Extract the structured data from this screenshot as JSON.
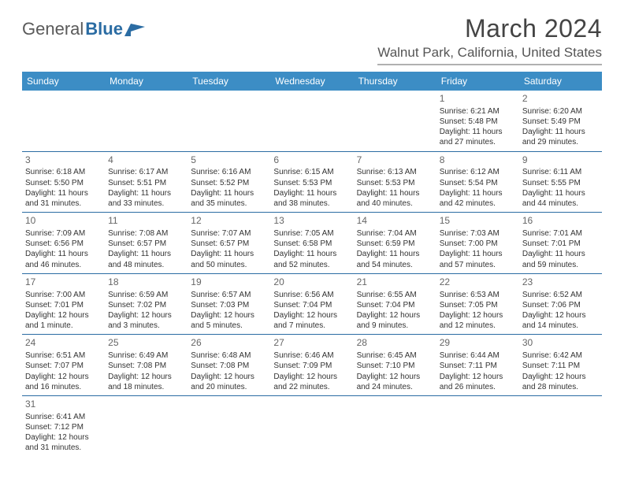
{
  "brand": {
    "part1": "General",
    "part2": "Blue"
  },
  "title": "March 2024",
  "location": "Walnut Park, California, United States",
  "colors": {
    "header_bg": "#3c8dc5",
    "header_text": "#ffffff",
    "cell_border": "#2b6ca3",
    "brand_gray": "#5a5a5a",
    "brand_blue": "#2b6ca3",
    "text": "#333333",
    "daynum": "#666666"
  },
  "weekdays": [
    "Sunday",
    "Monday",
    "Tuesday",
    "Wednesday",
    "Thursday",
    "Friday",
    "Saturday"
  ],
  "weeks": [
    [
      null,
      null,
      null,
      null,
      null,
      {
        "n": "1",
        "sunrise": "6:21 AM",
        "sunset": "5:48 PM",
        "daylight": "11 hours and 27 minutes."
      },
      {
        "n": "2",
        "sunrise": "6:20 AM",
        "sunset": "5:49 PM",
        "daylight": "11 hours and 29 minutes."
      }
    ],
    [
      {
        "n": "3",
        "sunrise": "6:18 AM",
        "sunset": "5:50 PM",
        "daylight": "11 hours and 31 minutes."
      },
      {
        "n": "4",
        "sunrise": "6:17 AM",
        "sunset": "5:51 PM",
        "daylight": "11 hours and 33 minutes."
      },
      {
        "n": "5",
        "sunrise": "6:16 AM",
        "sunset": "5:52 PM",
        "daylight": "11 hours and 35 minutes."
      },
      {
        "n": "6",
        "sunrise": "6:15 AM",
        "sunset": "5:53 PM",
        "daylight": "11 hours and 38 minutes."
      },
      {
        "n": "7",
        "sunrise": "6:13 AM",
        "sunset": "5:53 PM",
        "daylight": "11 hours and 40 minutes."
      },
      {
        "n": "8",
        "sunrise": "6:12 AM",
        "sunset": "5:54 PM",
        "daylight": "11 hours and 42 minutes."
      },
      {
        "n": "9",
        "sunrise": "6:11 AM",
        "sunset": "5:55 PM",
        "daylight": "11 hours and 44 minutes."
      }
    ],
    [
      {
        "n": "10",
        "sunrise": "7:09 AM",
        "sunset": "6:56 PM",
        "daylight": "11 hours and 46 minutes."
      },
      {
        "n": "11",
        "sunrise": "7:08 AM",
        "sunset": "6:57 PM",
        "daylight": "11 hours and 48 minutes."
      },
      {
        "n": "12",
        "sunrise": "7:07 AM",
        "sunset": "6:57 PM",
        "daylight": "11 hours and 50 minutes."
      },
      {
        "n": "13",
        "sunrise": "7:05 AM",
        "sunset": "6:58 PM",
        "daylight": "11 hours and 52 minutes."
      },
      {
        "n": "14",
        "sunrise": "7:04 AM",
        "sunset": "6:59 PM",
        "daylight": "11 hours and 54 minutes."
      },
      {
        "n": "15",
        "sunrise": "7:03 AM",
        "sunset": "7:00 PM",
        "daylight": "11 hours and 57 minutes."
      },
      {
        "n": "16",
        "sunrise": "7:01 AM",
        "sunset": "7:01 PM",
        "daylight": "11 hours and 59 minutes."
      }
    ],
    [
      {
        "n": "17",
        "sunrise": "7:00 AM",
        "sunset": "7:01 PM",
        "daylight": "12 hours and 1 minute."
      },
      {
        "n": "18",
        "sunrise": "6:59 AM",
        "sunset": "7:02 PM",
        "daylight": "12 hours and 3 minutes."
      },
      {
        "n": "19",
        "sunrise": "6:57 AM",
        "sunset": "7:03 PM",
        "daylight": "12 hours and 5 minutes."
      },
      {
        "n": "20",
        "sunrise": "6:56 AM",
        "sunset": "7:04 PM",
        "daylight": "12 hours and 7 minutes."
      },
      {
        "n": "21",
        "sunrise": "6:55 AM",
        "sunset": "7:04 PM",
        "daylight": "12 hours and 9 minutes."
      },
      {
        "n": "22",
        "sunrise": "6:53 AM",
        "sunset": "7:05 PM",
        "daylight": "12 hours and 12 minutes."
      },
      {
        "n": "23",
        "sunrise": "6:52 AM",
        "sunset": "7:06 PM",
        "daylight": "12 hours and 14 minutes."
      }
    ],
    [
      {
        "n": "24",
        "sunrise": "6:51 AM",
        "sunset": "7:07 PM",
        "daylight": "12 hours and 16 minutes."
      },
      {
        "n": "25",
        "sunrise": "6:49 AM",
        "sunset": "7:08 PM",
        "daylight": "12 hours and 18 minutes."
      },
      {
        "n": "26",
        "sunrise": "6:48 AM",
        "sunset": "7:08 PM",
        "daylight": "12 hours and 20 minutes."
      },
      {
        "n": "27",
        "sunrise": "6:46 AM",
        "sunset": "7:09 PM",
        "daylight": "12 hours and 22 minutes."
      },
      {
        "n": "28",
        "sunrise": "6:45 AM",
        "sunset": "7:10 PM",
        "daylight": "12 hours and 24 minutes."
      },
      {
        "n": "29",
        "sunrise": "6:44 AM",
        "sunset": "7:11 PM",
        "daylight": "12 hours and 26 minutes."
      },
      {
        "n": "30",
        "sunrise": "6:42 AM",
        "sunset": "7:11 PM",
        "daylight": "12 hours and 28 minutes."
      }
    ],
    [
      {
        "n": "31",
        "sunrise": "6:41 AM",
        "sunset": "7:12 PM",
        "daylight": "12 hours and 31 minutes."
      },
      null,
      null,
      null,
      null,
      null,
      null
    ]
  ],
  "labels": {
    "sunrise": "Sunrise:",
    "sunset": "Sunset:",
    "daylight": "Daylight:"
  }
}
